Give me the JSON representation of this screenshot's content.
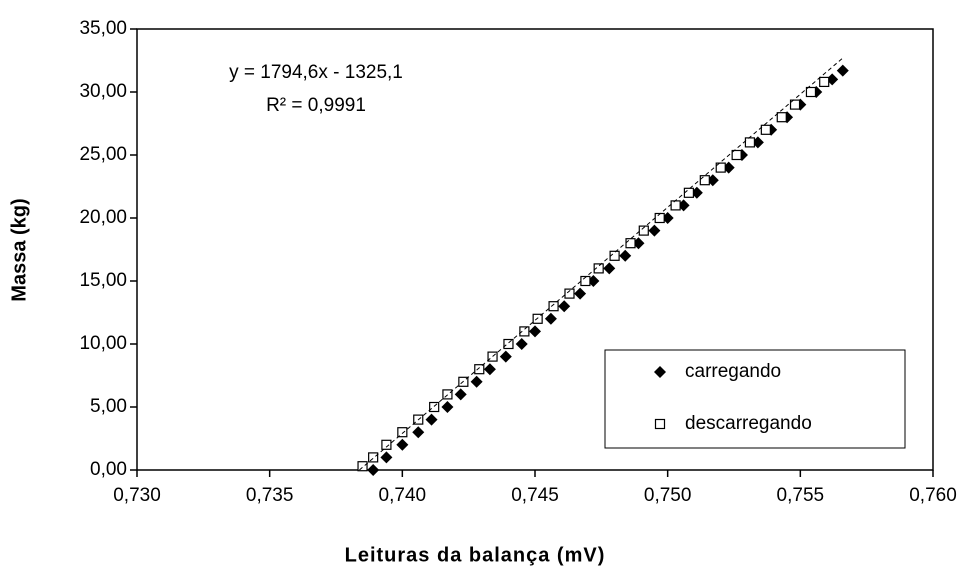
{
  "chart_data": {
    "type": "scatter",
    "xlabel": "Leituras da balança (mV)",
    "ylabel": "Massa (kg)",
    "xlim": [
      0.73,
      0.76
    ],
    "ylim": [
      0,
      35
    ],
    "xticks": [
      {
        "value": 0.73,
        "label": "0,730"
      },
      {
        "value": 0.735,
        "label": "0,735"
      },
      {
        "value": 0.74,
        "label": "0,740"
      },
      {
        "value": 0.745,
        "label": "0,745"
      },
      {
        "value": 0.75,
        "label": "0,750"
      },
      {
        "value": 0.755,
        "label": "0,755"
      },
      {
        "value": 0.76,
        "label": "0,760"
      }
    ],
    "yticks": [
      {
        "value": 0,
        "label": "0,00"
      },
      {
        "value": 5,
        "label": "5,00"
      },
      {
        "value": 10,
        "label": "10,00"
      },
      {
        "value": 15,
        "label": "15,00"
      },
      {
        "value": 20,
        "label": "20,00"
      },
      {
        "value": 25,
        "label": "25,00"
      },
      {
        "value": 30,
        "label": "30,00"
      },
      {
        "value": 35,
        "label": "35,00"
      }
    ],
    "legend": "lower right",
    "trendline": {
      "equation": "y = 1794,6x - 1325,1",
      "r2": "R² = 0,9991",
      "slope": 1794.6,
      "intercept": -1325.1
    },
    "series": [
      {
        "name": "carregando",
        "marker": "diamond",
        "color": "#000000",
        "x": [
          0.7389,
          0.7394,
          0.74,
          0.7406,
          0.7411,
          0.7417,
          0.7422,
          0.7428,
          0.7433,
          0.7439,
          0.7445,
          0.745,
          0.7456,
          0.7461,
          0.7467,
          0.7472,
          0.7478,
          0.7484,
          0.7489,
          0.7495,
          0.75,
          0.7506,
          0.7511,
          0.7517,
          0.7523,
          0.7528,
          0.7534,
          0.7539,
          0.7545,
          0.755,
          0.7556,
          0.7562,
          0.7566
        ],
        "values": [
          0,
          1,
          2,
          3,
          4,
          5,
          6,
          7,
          8,
          9,
          10,
          11,
          12,
          13,
          14,
          15,
          16,
          17,
          18,
          19,
          20,
          21,
          22,
          23,
          24,
          25,
          26,
          27,
          28,
          29,
          30,
          31,
          31.7
        ]
      },
      {
        "name": "descarregando",
        "marker": "square",
        "color": "#000000",
        "x": [
          0.7385,
          0.7389,
          0.7394,
          0.74,
          0.7406,
          0.7412,
          0.7417,
          0.7423,
          0.7429,
          0.7434,
          0.744,
          0.7446,
          0.7451,
          0.7457,
          0.7463,
          0.7469,
          0.7474,
          0.748,
          0.7486,
          0.7491,
          0.7497,
          0.7503,
          0.7508,
          0.7514,
          0.752,
          0.7526,
          0.7531,
          0.7537,
          0.7543,
          0.7548,
          0.7554,
          0.7559
        ],
        "values": [
          0.3,
          1,
          2,
          3,
          4,
          5,
          6,
          7,
          8,
          9,
          10,
          11,
          12,
          13,
          14,
          15,
          16,
          17,
          18,
          19,
          20,
          21,
          22,
          23,
          24,
          25,
          26,
          27,
          28,
          29,
          30,
          30.8
        ]
      }
    ]
  }
}
